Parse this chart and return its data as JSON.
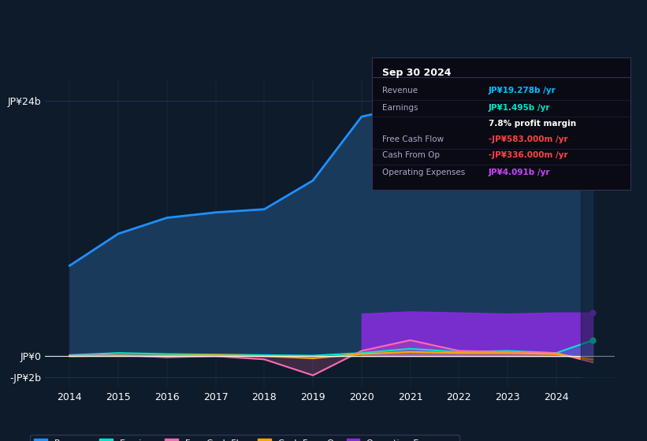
{
  "background_color": "#0d1b2a",
  "chart_bg_color": "#0d1b2a",
  "title_box": {
    "date": "Sep 30 2024",
    "rows": [
      {
        "label": "Revenue",
        "value": "JP¥19.278b /yr",
        "value_color": "#00bfff"
      },
      {
        "label": "Earnings",
        "value": "JP¥1.495b /yr",
        "value_color": "#00e5cc"
      },
      {
        "label": "",
        "value": "7.8% profit margin",
        "value_color": "#ffffff"
      },
      {
        "label": "Free Cash Flow",
        "value": "-JP¥583.000m /yr",
        "value_color": "#ff4444"
      },
      {
        "label": "Cash From Op",
        "value": "-JP¥336.000m /yr",
        "value_color": "#ff4444"
      },
      {
        "label": "Operating Expenses",
        "value": "JP¥4.091b /yr",
        "value_color": "#cc44ff"
      }
    ]
  },
  "years": [
    2014,
    2015,
    2016,
    2017,
    2018,
    2019,
    2020,
    2021,
    2022,
    2023,
    2024,
    2024.75
  ],
  "revenue": [
    8.5,
    11.5,
    13.0,
    13.5,
    13.8,
    16.5,
    22.5,
    23.5,
    20.5,
    19.5,
    18.0,
    19.278
  ],
  "earnings": [
    0.1,
    0.3,
    0.2,
    0.15,
    0.1,
    0.05,
    0.3,
    0.7,
    0.4,
    0.5,
    0.3,
    1.495
  ],
  "free_cash_flow": [
    0.05,
    0.1,
    -0.1,
    0.0,
    -0.3,
    -1.8,
    0.5,
    1.5,
    0.5,
    0.4,
    0.3,
    -0.583
  ],
  "cash_from_op": [
    0.0,
    0.05,
    0.05,
    0.1,
    0.0,
    -0.2,
    0.2,
    0.4,
    0.3,
    0.3,
    0.2,
    -0.336
  ],
  "operating_expenses": [
    0.0,
    0.0,
    0.0,
    0.0,
    0.0,
    0.0,
    4.0,
    4.2,
    4.1,
    4.0,
    4.1,
    4.091
  ],
  "revenue_color": "#1e90ff",
  "revenue_fill": "#1a3a5c",
  "earnings_color": "#00e5cc",
  "free_cash_flow_color": "#ff69b4",
  "cash_from_op_color": "#ffa500",
  "operating_expenses_color": "#8a2be2",
  "operating_expenses_fill": "#5a1a9a",
  "ylim": [
    -3.0,
    26.0
  ],
  "yticks": [
    -2,
    0,
    24
  ],
  "ytick_labels": [
    "-JP¥2b",
    "JP¥0",
    "JP¥24b"
  ],
  "xlim": [
    2013.5,
    2025.2
  ],
  "xticks": [
    2014,
    2015,
    2016,
    2017,
    2018,
    2019,
    2020,
    2021,
    2022,
    2023,
    2024
  ],
  "grid_color": "#1e3a5f",
  "legend_items": [
    {
      "label": "Revenue",
      "color": "#1e90ff"
    },
    {
      "label": "Earnings",
      "color": "#00e5cc"
    },
    {
      "label": "Free Cash Flow",
      "color": "#ff69b4"
    },
    {
      "label": "Cash From Op",
      "color": "#ffa500"
    },
    {
      "label": "Operating Expenses",
      "color": "#8a2be2"
    }
  ]
}
